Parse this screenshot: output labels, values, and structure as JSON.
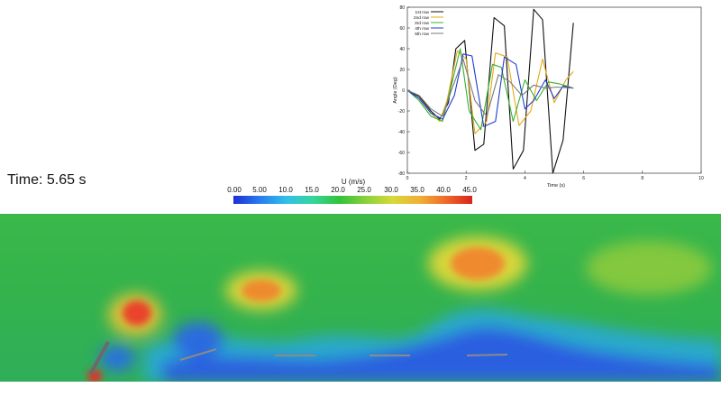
{
  "time_display": "Time: 5.65 s",
  "colorbar": {
    "title": "U (m/s)",
    "ticks": [
      "0.00",
      "5.00",
      "10.0",
      "15.0",
      "20.0",
      "25.0",
      "30.0",
      "35.0",
      "40.0",
      "45.0"
    ],
    "colors": [
      "#1e2fd4",
      "#2a7cf0",
      "#32c0e8",
      "#36d59a",
      "#33c23c",
      "#8bd13a",
      "#d6d93a",
      "#f0b037",
      "#ee6a2a",
      "#d8231f"
    ]
  },
  "chart_data": {
    "type": "line",
    "title": "",
    "xlabel": "Time (s)",
    "ylabel": "Angle (Deg)",
    "xlim": [
      0,
      10
    ],
    "ylim": [
      -80,
      80
    ],
    "xticks": [
      "0",
      "2",
      "4",
      "6",
      "8",
      "10"
    ],
    "yticks": [
      "80",
      "60",
      "40",
      "20",
      "0",
      "-20",
      "-40",
      "-60",
      "-80"
    ],
    "legend_position": "top-left",
    "series": [
      {
        "name": "1st row",
        "color": "#111111",
        "x": [
          0,
          0.4,
          0.8,
          1.1,
          1.4,
          1.65,
          1.95,
          2.3,
          2.6,
          2.95,
          3.3,
          3.6,
          3.95,
          4.3,
          4.6,
          4.95,
          5.3,
          5.65
        ],
        "y": [
          0,
          -6,
          -20,
          -28,
          -12,
          40,
          48,
          -58,
          -52,
          70,
          62,
          -76,
          -58,
          78,
          68,
          -80,
          -48,
          65
        ]
      },
      {
        "name": "2nd row",
        "color": "#e6a818",
        "x": [
          0,
          0.4,
          0.8,
          1.1,
          1.35,
          1.7,
          2.0,
          2.3,
          2.7,
          3.0,
          3.4,
          3.8,
          4.2,
          4.6,
          5.0,
          5.4,
          5.65
        ],
        "y": [
          0,
          -8,
          -22,
          -30,
          -10,
          38,
          30,
          -42,
          -30,
          36,
          32,
          -34,
          -20,
          30,
          -12,
          10,
          18
        ]
      },
      {
        "name": "3rd row",
        "color": "#38b22e",
        "x": [
          0,
          0.4,
          0.8,
          1.2,
          1.5,
          1.8,
          2.1,
          2.5,
          2.9,
          3.2,
          3.6,
          4.0,
          4.4,
          4.8,
          5.2,
          5.65
        ],
        "y": [
          0,
          -10,
          -25,
          -30,
          5,
          40,
          -20,
          -38,
          25,
          22,
          -30,
          10,
          -10,
          8,
          6,
          2
        ]
      },
      {
        "name": "4th row",
        "color": "#1f3bd4",
        "x": [
          0,
          0.4,
          0.8,
          1.2,
          1.6,
          1.9,
          2.2,
          2.6,
          3.0,
          3.3,
          3.7,
          4.0,
          4.3,
          4.7,
          5.0,
          5.3,
          5.65
        ],
        "y": [
          0,
          -8,
          -22,
          -28,
          -5,
          35,
          33,
          -35,
          -30,
          32,
          25,
          -18,
          -10,
          10,
          -8,
          4,
          2
        ]
      },
      {
        "name": "5th row",
        "color": "#7a7a7a",
        "x": [
          0,
          0.4,
          0.8,
          1.2,
          1.5,
          1.9,
          2.3,
          2.7,
          3.1,
          3.5,
          3.9,
          4.3,
          4.7,
          5.1,
          5.65
        ],
        "y": [
          0,
          -5,
          -18,
          -25,
          0,
          30,
          -10,
          -25,
          15,
          8,
          -5,
          5,
          2,
          3,
          2
        ]
      }
    ]
  }
}
